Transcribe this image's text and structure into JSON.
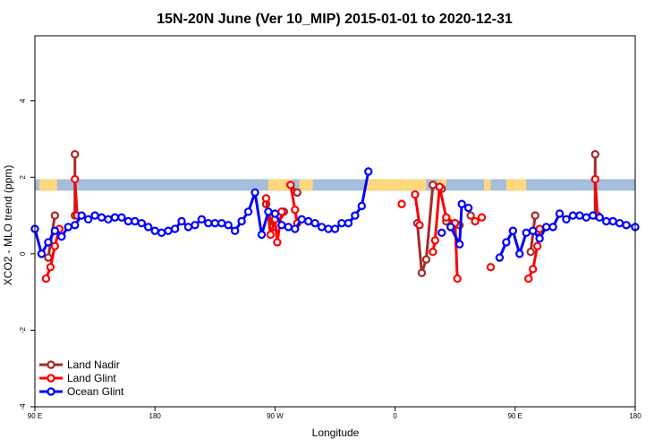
{
  "chart_data": {
    "type": "line",
    "title": "15N-20N June (Ver 10_MIP)   2015-01-01 to 2020-12-31",
    "xlabel": "Longitude",
    "ylabel": "XCO2 - MLO trend (ppm)",
    "xlim": [
      -90,
      180
    ],
    "ylim": [
      -4,
      5.7
    ],
    "x_ticks": [
      {
        "value": -90,
        "label": "90 E"
      },
      {
        "value": -36,
        "label": "180"
      },
      {
        "value": 18,
        "label": "90 W"
      },
      {
        "value": 72,
        "label": "0"
      },
      {
        "value": 126,
        "label": "90 E"
      },
      {
        "value": 180,
        "label": "180"
      }
    ],
    "y_ticks": [
      -4,
      -2,
      0,
      2,
      4
    ],
    "band": {
      "y_low": 1.65,
      "y_high": 1.95,
      "ocean_color": "#a6bddb",
      "land_color": "#fdd87f"
    },
    "land_segments": [
      [
        -88,
        -80
      ],
      [
        -86,
        -83
      ],
      [
        15,
        26
      ],
      [
        29,
        35
      ],
      [
        59,
        86
      ],
      [
        91,
        95
      ],
      [
        112,
        115
      ],
      [
        122,
        131
      ]
    ],
    "legend": {
      "position": "bottom-left",
      "entries": [
        "Land Nadir",
        "Land Glint",
        "Ocean Glint"
      ]
    },
    "series": [
      {
        "name": "Land Nadir",
        "color": "#a52a2a",
        "segments": [
          [
            [
              -84,
              -0.1
            ],
            [
              -81,
              1.0
            ]
          ],
          [
            [
              -72,
              2.6
            ],
            [
              -72,
              1.0
            ]
          ],
          [
            [
              14,
              1.3
            ],
            [
              17,
              0.7
            ],
            [
              20,
              1.0
            ],
            [
              22,
              1.1
            ]
          ],
          [
            [
              25,
              1.8
            ],
            [
              28,
              1.6
            ]
          ],
          [
            [
              82,
              0.8
            ],
            [
              84,
              -0.5
            ],
            [
              86,
              -0.15
            ],
            [
              89,
              1.8
            ],
            [
              93,
              1.7
            ]
          ],
          [
            [
              95,
              0.85
            ],
            [
              99,
              0.8
            ],
            [
              101,
              0.75
            ]
          ],
          [
            [
              106,
              1.0
            ]
          ],
          [
            [
              133,
              0.05
            ],
            [
              135,
              1.0
            ]
          ],
          [
            [
              162,
              2.6
            ],
            [
              162,
              1.0
            ]
          ]
        ]
      },
      {
        "name": "Land Glint",
        "color": "#ff0000",
        "segments": [
          [
            [
              -85,
              -0.65
            ],
            [
              -83,
              -0.35
            ],
            [
              -81,
              0.2
            ],
            [
              -79,
              0.65
            ]
          ],
          [
            [
              -72,
              1.95
            ],
            [
              -71,
              1.0
            ]
          ],
          [
            [
              14,
              1.45
            ],
            [
              16,
              0.5
            ],
            [
              18,
              0.9
            ],
            [
              19,
              0.3
            ],
            [
              21,
              1.1
            ]
          ],
          [
            [
              25,
              1.8
            ],
            [
              27,
              1.15
            ],
            [
              28,
              0.8
            ]
          ],
          [
            [
              75,
              1.3
            ]
          ],
          [
            [
              81,
              1.55
            ],
            [
              83,
              0.75
            ]
          ],
          [
            [
              89,
              0.05
            ],
            [
              90,
              0.35
            ],
            [
              92,
              1.75
            ],
            [
              95,
              0.95
            ],
            [
              99,
              0.8
            ],
            [
              100,
              -0.65
            ]
          ],
          [
            [
              108,
              0.85
            ],
            [
              111,
              0.95
            ]
          ],
          [
            [
              115,
              -0.35
            ]
          ],
          [
            [
              132,
              -0.65
            ],
            [
              134,
              -0.4
            ],
            [
              136,
              0.2
            ],
            [
              137,
              0.65
            ]
          ],
          [
            [
              162,
              1.95
            ],
            [
              163,
              1.0
            ]
          ]
        ]
      },
      {
        "name": "Ocean Glint",
        "color": "#0000ff",
        "segments": [
          [
            [
              -90,
              0.65
            ],
            [
              -87,
              0.0
            ],
            [
              -84,
              0.3
            ],
            [
              -81,
              0.6
            ],
            [
              -78,
              0.45
            ],
            [
              -75,
              0.7
            ],
            [
              -72,
              0.75
            ],
            [
              -69,
              1.0
            ],
            [
              -66,
              0.9
            ],
            [
              -63,
              1.0
            ],
            [
              -60,
              0.95
            ],
            [
              -57,
              0.9
            ],
            [
              -54,
              0.95
            ],
            [
              -51,
              0.95
            ],
            [
              -48,
              0.85
            ],
            [
              -45,
              0.85
            ],
            [
              -42,
              0.8
            ],
            [
              -39,
              0.7
            ],
            [
              -36,
              0.6
            ],
            [
              -33,
              0.55
            ],
            [
              -30,
              0.6
            ],
            [
              -27,
              0.65
            ],
            [
              -24,
              0.85
            ],
            [
              -21,
              0.7
            ],
            [
              -18,
              0.75
            ],
            [
              -15,
              0.9
            ],
            [
              -12,
              0.8
            ],
            [
              -9,
              0.8
            ],
            [
              -6,
              0.8
            ],
            [
              -3,
              0.75
            ],
            [
              0,
              0.6
            ],
            [
              3,
              0.85
            ],
            [
              6,
              1.1
            ],
            [
              9,
              1.6
            ],
            [
              12,
              0.5
            ],
            [
              15,
              1.1
            ],
            [
              18,
              1.05
            ],
            [
              21,
              0.75
            ],
            [
              24,
              0.7
            ],
            [
              27,
              0.65
            ],
            [
              30,
              0.9
            ],
            [
              33,
              0.85
            ],
            [
              36,
              0.8
            ],
            [
              39,
              0.7
            ],
            [
              42,
              0.65
            ],
            [
              45,
              0.65
            ],
            [
              48,
              0.8
            ],
            [
              51,
              0.8
            ],
            [
              54,
              1.0
            ],
            [
              57,
              1.25
            ],
            [
              60,
              2.15
            ]
          ],
          [
            [
              93,
              0.55
            ]
          ],
          [
            [
              97,
              0.7
            ],
            [
              101,
              0.25
            ],
            [
              102,
              1.3
            ],
            [
              105,
              1.2
            ]
          ],
          [
            [
              119,
              -0.1
            ],
            [
              122,
              0.3
            ],
            [
              125,
              0.6
            ],
            [
              128,
              0.0
            ],
            [
              131,
              0.55
            ],
            [
              134,
              0.6
            ],
            [
              137,
              0.4
            ],
            [
              140,
              0.7
            ],
            [
              143,
              0.7
            ],
            [
              146,
              1.05
            ],
            [
              149,
              0.9
            ],
            [
              152,
              1.0
            ],
            [
              155,
              1.0
            ],
            [
              158,
              0.95
            ],
            [
              161,
              1.0
            ],
            [
              164,
              0.95
            ],
            [
              167,
              0.85
            ],
            [
              170,
              0.85
            ],
            [
              173,
              0.8
            ],
            [
              176,
              0.75
            ],
            [
              180,
              0.7
            ]
          ]
        ]
      }
    ]
  }
}
